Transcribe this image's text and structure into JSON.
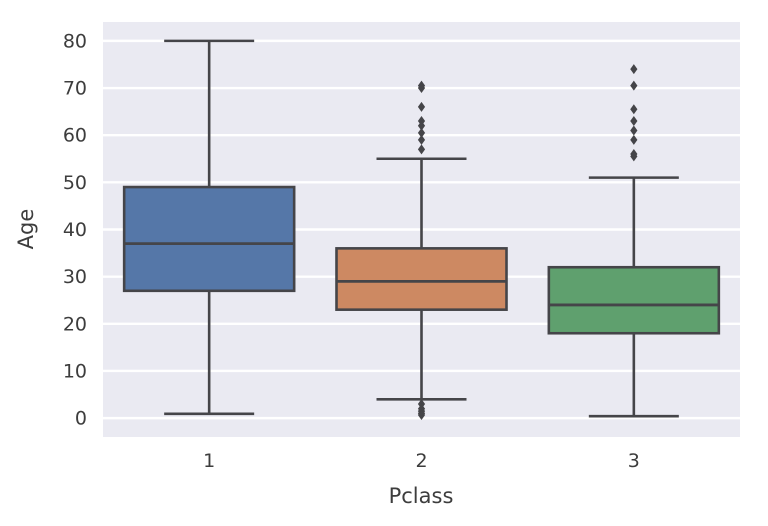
{
  "chart_data": {
    "type": "box",
    "title": "",
    "xlabel": "Pclass",
    "ylabel": "Age",
    "categories": [
      "1",
      "2",
      "3"
    ],
    "yticks": [
      0,
      10,
      20,
      30,
      40,
      50,
      60,
      70,
      80
    ],
    "ylim": [
      -4,
      84
    ],
    "grid": true,
    "legend": "none",
    "series": [
      {
        "category": "1",
        "color": "#5577a8",
        "whisker_low": 0.92,
        "q1": 27,
        "median": 37,
        "q3": 49,
        "whisker_high": 80,
        "outliers": []
      },
      {
        "category": "2",
        "color": "#cd8962",
        "whisker_low": 4,
        "q1": 23,
        "median": 29,
        "q3": 36,
        "whisker_high": 55,
        "outliers": [
          70.5,
          70,
          66,
          63,
          62,
          60.5,
          59,
          57,
          3,
          2,
          1.5,
          1,
          0.67
        ]
      },
      {
        "category": "3",
        "color": "#5fa06e",
        "whisker_low": 0.42,
        "q1": 18,
        "median": 24,
        "q3": 32,
        "whisker_high": 51,
        "outliers": [
          74,
          70.5,
          65.5,
          63,
          61,
          59,
          56,
          55.5
        ]
      }
    ],
    "colors": {
      "plot_background": "#eaeaf2",
      "gridline": "#ffffff",
      "line": "#454549",
      "text": "#3d3d3d",
      "figure_background": "#ffffff"
    }
  }
}
